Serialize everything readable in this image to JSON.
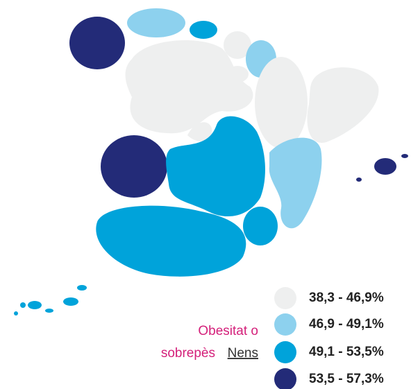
{
  "legend": {
    "title_line1": "Obesitat o",
    "title_line2": "sobrepès",
    "link": "Nens",
    "items": [
      {
        "label": "38,3 - 46,9%",
        "color": "#eeefef"
      },
      {
        "label": "46,9 - 49,1%",
        "color": "#8dd1ee"
      },
      {
        "label": "49,1 - 53,5%",
        "color": "#00a3da"
      },
      {
        "label": "53,5 - 57,3%",
        "color": "#232b78"
      }
    ]
  }
}
